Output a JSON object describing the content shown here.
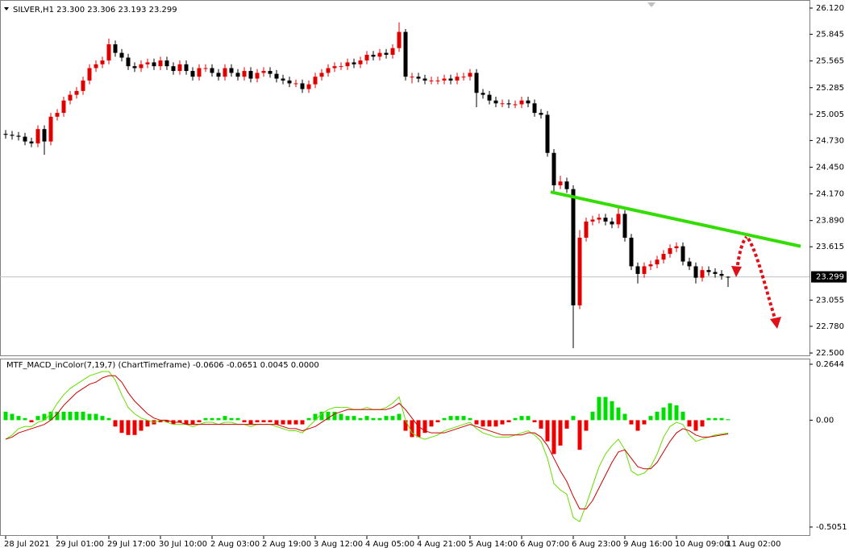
{
  "chart_data": [
    {
      "type": "candlestick",
      "title": "SILVER,H1  23.300 23.306 23.193 23.299",
      "ylim": [
        22.475,
        26.171
      ],
      "yticks": [
        {
          "value": 26.12,
          "label": "26.120"
        },
        25.845,
        25.565,
        25.285,
        25.005,
        {
          "value": 24.73,
          "label": "24.730"
        },
        {
          "value": 24.45,
          "label": "24.450"
        },
        {
          "value": 24.17,
          "label": "24.170"
        },
        {
          "value": 23.89,
          "label": "23.890"
        },
        23.615,
        23.055,
        {
          "value": 22.78,
          "label": "22.780"
        },
        {
          "value": 22.5,
          "label": "22.500"
        }
      ],
      "up_color": "#e00000",
      "down_color": "#000000",
      "price_line": {
        "value": 23.299,
        "label": "23.299"
      },
      "trendline": {
        "x": [
          84.5,
          123.25
        ],
        "y": [
          24.19,
          23.62
        ],
        "color": "#33dd00"
      },
      "open": [
        24.8,
        24.79,
        24.78,
        24.77,
        24.72,
        24.7,
        24.85,
        24.72,
        24.98,
        25.02,
        25.15,
        25.21,
        25.25,
        25.36,
        25.49,
        25.53,
        25.57,
        25.74,
        25.65,
        25.6,
        25.51,
        25.49,
        25.53,
        25.55,
        25.51,
        25.57,
        25.51,
        25.46,
        25.53,
        25.46,
        25.4,
        25.49,
        25.49,
        25.44,
        25.4,
        25.49,
        25.44,
        25.4,
        25.46,
        25.38,
        25.44,
        25.46,
        25.43,
        25.38,
        25.36,
        25.33,
        25.33,
        25.27,
        25.32,
        25.4,
        25.44,
        25.49,
        25.51,
        25.51,
        25.55,
        25.53,
        25.57,
        25.63,
        25.61,
        25.65,
        25.63,
        25.7,
        25.87,
        25.4,
        25.4,
        25.38,
        25.36,
        25.36,
        25.36,
        25.38,
        25.36,
        25.4,
        25.4,
        25.44,
        25.23,
        25.21,
        25.15,
        25.12,
        25.12,
        25.11,
        25.11,
        25.15,
        25.12,
        25.02,
        25.0,
        24.6,
        24.26,
        24.3,
        24.22,
        23.0,
        23.71,
        23.88,
        23.9,
        23.92,
        23.88,
        23.85,
        23.96,
        23.71,
        23.41,
        23.33,
        23.41,
        23.43,
        23.48,
        23.54,
        23.6,
        23.62,
        23.46,
        23.41,
        23.29,
        23.37,
        23.35,
        23.33,
        23.3
      ],
      "high": [
        24.84,
        24.83,
        24.82,
        24.81,
        24.76,
        24.89,
        24.89,
        25.02,
        25.06,
        25.19,
        25.25,
        25.29,
        25.4,
        25.53,
        25.57,
        25.61,
        25.8,
        25.78,
        25.69,
        25.64,
        25.55,
        25.57,
        25.59,
        25.59,
        25.61,
        25.61,
        25.55,
        25.57,
        25.57,
        25.5,
        25.53,
        25.53,
        25.53,
        25.48,
        25.53,
        25.53,
        25.48,
        25.5,
        25.5,
        25.48,
        25.5,
        25.5,
        25.47,
        25.42,
        25.4,
        25.37,
        25.37,
        25.36,
        25.44,
        25.48,
        25.53,
        25.55,
        25.55,
        25.59,
        25.59,
        25.61,
        25.67,
        25.67,
        25.69,
        25.69,
        25.74,
        25.97,
        25.9,
        25.44,
        25.44,
        25.42,
        25.4,
        25.4,
        25.42,
        25.42,
        25.44,
        25.44,
        25.48,
        25.48,
        25.27,
        25.25,
        25.19,
        25.16,
        25.16,
        25.15,
        25.19,
        25.19,
        25.16,
        25.06,
        25.04,
        24.64,
        24.36,
        24.34,
        24.26,
        23.79,
        23.92,
        23.94,
        23.96,
        23.96,
        23.92,
        24.02,
        24.0,
        23.75,
        23.45,
        23.45,
        23.47,
        23.52,
        23.58,
        23.64,
        23.66,
        23.66,
        23.5,
        23.45,
        23.41,
        23.41,
        23.39,
        23.37,
        23.306
      ],
      "low": [
        24.75,
        24.74,
        24.73,
        24.68,
        24.66,
        24.66,
        24.58,
        24.68,
        24.94,
        24.98,
        25.11,
        25.17,
        25.21,
        25.32,
        25.45,
        25.49,
        25.53,
        25.61,
        25.56,
        25.47,
        25.45,
        25.45,
        25.49,
        25.47,
        25.47,
        25.47,
        25.42,
        25.42,
        25.42,
        25.36,
        25.36,
        25.45,
        25.4,
        25.36,
        25.36,
        25.4,
        25.36,
        25.36,
        25.34,
        25.34,
        25.4,
        25.39,
        25.34,
        25.32,
        25.29,
        25.29,
        25.23,
        25.23,
        25.28,
        25.36,
        25.4,
        25.45,
        25.47,
        25.47,
        25.49,
        25.49,
        25.53,
        25.57,
        25.57,
        25.59,
        25.59,
        25.66,
        25.36,
        25.33,
        25.34,
        25.32,
        25.32,
        25.32,
        25.32,
        25.32,
        25.32,
        25.36,
        25.36,
        25.08,
        25.17,
        25.11,
        25.08,
        25.08,
        25.07,
        25.07,
        25.07,
        25.08,
        24.98,
        24.96,
        24.56,
        24.18,
        24.22,
        24.18,
        22.55,
        22.96,
        23.67,
        23.84,
        23.86,
        23.84,
        23.81,
        23.81,
        23.67,
        23.37,
        23.23,
        23.29,
        23.37,
        23.39,
        23.44,
        23.5,
        23.56,
        23.42,
        23.37,
        23.23,
        23.25,
        23.31,
        23.29,
        23.27,
        23.193
      ],
      "close": [
        24.79,
        24.78,
        24.77,
        24.72,
        24.7,
        24.85,
        24.72,
        24.98,
        25.02,
        25.15,
        25.21,
        25.25,
        25.36,
        25.49,
        25.53,
        25.57,
        25.74,
        25.65,
        25.6,
        25.51,
        25.49,
        25.53,
        25.55,
        25.51,
        25.57,
        25.51,
        25.46,
        25.53,
        25.46,
        25.4,
        25.49,
        25.49,
        25.44,
        25.4,
        25.49,
        25.44,
        25.4,
        25.46,
        25.38,
        25.44,
        25.46,
        25.43,
        25.38,
        25.36,
        25.33,
        25.33,
        25.27,
        25.32,
        25.4,
        25.44,
        25.49,
        25.51,
        25.51,
        25.55,
        25.53,
        25.57,
        25.63,
        25.61,
        25.65,
        25.63,
        25.7,
        25.87,
        25.4,
        25.4,
        25.38,
        25.36,
        25.36,
        25.36,
        25.38,
        25.36,
        25.4,
        25.4,
        25.44,
        25.23,
        25.21,
        25.15,
        25.12,
        25.12,
        25.11,
        25.11,
        25.15,
        25.12,
        25.02,
        25.0,
        24.6,
        24.26,
        24.3,
        24.22,
        23.0,
        23.71,
        23.88,
        23.9,
        23.92,
        23.88,
        23.85,
        23.96,
        23.71,
        23.41,
        23.33,
        23.41,
        23.43,
        23.48,
        23.54,
        23.6,
        23.62,
        23.46,
        23.41,
        23.29,
        23.37,
        23.35,
        23.33,
        23.31,
        23.299
      ]
    },
    {
      "type": "macd",
      "title": "MTF_MACD_inColor(7,19,7) (ChartTimeframe) -0.0606 -0.0651 0.0045 0.0000",
      "xlim": [
        -0.875,
        124.625
      ],
      "categories": [
        "28 Jul 2021",
        null,
        null,
        null,
        null,
        null,
        null,
        null,
        "29 Jul 01:00",
        null,
        null,
        null,
        null,
        null,
        null,
        null,
        "29 Jul 17:00",
        null,
        null,
        null,
        null,
        null,
        null,
        null,
        "30 Jul 10:00",
        null,
        null,
        null,
        null,
        null,
        null,
        null,
        "2 Aug 03:00",
        null,
        null,
        null,
        null,
        null,
        null,
        null,
        "2 Aug 19:00",
        null,
        null,
        null,
        null,
        null,
        null,
        null,
        "3 Aug 12:00",
        null,
        null,
        null,
        null,
        null,
        null,
        null,
        "4 Aug 05:00",
        null,
        null,
        null,
        null,
        null,
        null,
        null,
        "4 Aug 21:00",
        null,
        null,
        null,
        null,
        null,
        null,
        null,
        "5 Aug 14:00",
        null,
        null,
        null,
        null,
        null,
        null,
        null,
        "6 Aug 07:00",
        null,
        null,
        null,
        null,
        null,
        null,
        null,
        "6 Aug 23:00",
        null,
        null,
        null,
        null,
        null,
        null,
        null,
        "9 Aug 16:00",
        null,
        null,
        null,
        null,
        null,
        null,
        null,
        "10 Aug 09:00",
        null,
        null,
        null,
        null,
        null,
        null,
        null,
        "11 Aug 02:00"
      ],
      "ylim": [
        -0.547,
        0.2873
      ],
      "yticks": [
        0.2644,
        {
          "value": 0,
          "label": "0.00"
        },
        -0.5051
      ],
      "up_color": "#00dd00",
      "down_color": "#ee0000",
      "histogram": [
        0.04,
        0.03,
        0.02,
        0.01,
        -0.01,
        0.02,
        0.03,
        0.04,
        0.04,
        0.04,
        0.04,
        0.04,
        0.04,
        0.03,
        0.03,
        0.02,
        0.01,
        -0.03,
        -0.06,
        -0.07,
        -0.07,
        -0.05,
        -0.03,
        -0.02,
        -0.01,
        -0.01,
        -0.02,
        -0.01,
        -0.02,
        -0.02,
        -0.01,
        0.01,
        0.01,
        0.01,
        0.02,
        0.01,
        0.01,
        -0.01,
        -0.02,
        -0.01,
        -0.01,
        -0.01,
        -0.02,
        -0.02,
        -0.02,
        -0.02,
        -0.02,
        0.01,
        0.03,
        0.04,
        0.04,
        0.04,
        0.03,
        0.02,
        0.02,
        0.01,
        0.02,
        0.01,
        0.01,
        0.02,
        0.02,
        0.03,
        -0.05,
        -0.08,
        -0.08,
        -0.06,
        -0.03,
        -0.01,
        0.01,
        0.02,
        0.02,
        0.02,
        0.01,
        -0.02,
        -0.03,
        -0.03,
        -0.03,
        -0.02,
        -0.01,
        0.01,
        0.02,
        0.02,
        -0.01,
        -0.04,
        -0.1,
        -0.16,
        -0.12,
        -0.04,
        0.02,
        -0.14,
        -0.05,
        0.04,
        0.11,
        0.11,
        0.09,
        0.06,
        0.03,
        -0.02,
        -0.05,
        -0.02,
        0.02,
        0.04,
        0.06,
        0.08,
        0.07,
        0.04,
        -0.03,
        -0.05,
        -0.03,
        0.01,
        0.01,
        0.01,
        0.0045
      ],
      "series": [
        {
          "name": "main",
          "color": "#66dd00",
          "values": [
            -0.09,
            -0.07,
            -0.04,
            -0.03,
            -0.03,
            -0.01,
            0.0,
            0.03,
            0.08,
            0.12,
            0.15,
            0.17,
            0.19,
            0.21,
            0.22,
            0.23,
            0.23,
            0.19,
            0.12,
            0.06,
            0.03,
            0.01,
            0.0,
            -0.01,
            0.0,
            -0.01,
            -0.02,
            -0.02,
            -0.02,
            -0.03,
            -0.02,
            -0.01,
            -0.01,
            -0.02,
            -0.01,
            -0.01,
            -0.02,
            -0.02,
            -0.03,
            -0.02,
            -0.02,
            -0.02,
            -0.03,
            -0.04,
            -0.05,
            -0.05,
            -0.06,
            -0.03,
            0.0,
            0.03,
            0.05,
            0.06,
            0.06,
            0.06,
            0.05,
            0.05,
            0.06,
            0.05,
            0.05,
            0.06,
            0.08,
            0.11,
            0.0,
            -0.06,
            -0.08,
            -0.09,
            -0.08,
            -0.07,
            -0.05,
            -0.04,
            -0.03,
            -0.02,
            -0.01,
            -0.04,
            -0.06,
            -0.07,
            -0.08,
            -0.08,
            -0.08,
            -0.07,
            -0.06,
            -0.05,
            -0.07,
            -0.1,
            -0.18,
            -0.3,
            -0.33,
            -0.35,
            -0.46,
            -0.48,
            -0.4,
            -0.31,
            -0.22,
            -0.16,
            -0.12,
            -0.09,
            -0.14,
            -0.24,
            -0.26,
            -0.25,
            -0.22,
            -0.16,
            -0.08,
            -0.03,
            -0.01,
            -0.02,
            -0.07,
            -0.1,
            -0.09,
            -0.08,
            -0.07,
            -0.065,
            -0.0606
          ]
        },
        {
          "name": "signal",
          "color": "#cc0000",
          "values": [
            -0.09,
            -0.08,
            -0.06,
            -0.05,
            -0.04,
            -0.03,
            -0.02,
            0.0,
            0.03,
            0.07,
            0.1,
            0.13,
            0.15,
            0.17,
            0.18,
            0.2,
            0.21,
            0.21,
            0.18,
            0.13,
            0.09,
            0.06,
            0.03,
            0.01,
            0.0,
            0.0,
            -0.01,
            -0.01,
            -0.02,
            -0.02,
            -0.02,
            -0.02,
            -0.02,
            -0.02,
            -0.02,
            -0.02,
            -0.02,
            -0.02,
            -0.02,
            -0.02,
            -0.02,
            -0.02,
            -0.02,
            -0.03,
            -0.04,
            -0.04,
            -0.05,
            -0.04,
            -0.03,
            -0.01,
            0.01,
            0.03,
            0.04,
            0.05,
            0.05,
            0.05,
            0.05,
            0.05,
            0.05,
            0.05,
            0.06,
            0.08,
            0.05,
            0.01,
            -0.03,
            -0.05,
            -0.06,
            -0.06,
            -0.06,
            -0.05,
            -0.04,
            -0.03,
            -0.02,
            -0.03,
            -0.04,
            -0.05,
            -0.06,
            -0.07,
            -0.07,
            -0.07,
            -0.07,
            -0.06,
            -0.06,
            -0.08,
            -0.12,
            -0.18,
            -0.24,
            -0.29,
            -0.36,
            -0.42,
            -0.42,
            -0.38,
            -0.32,
            -0.26,
            -0.2,
            -0.15,
            -0.14,
            -0.18,
            -0.22,
            -0.23,
            -0.23,
            -0.2,
            -0.15,
            -0.1,
            -0.06,
            -0.04,
            -0.05,
            -0.07,
            -0.08,
            -0.08,
            -0.075,
            -0.07,
            -0.0651
          ]
        }
      ]
    }
  ]
}
